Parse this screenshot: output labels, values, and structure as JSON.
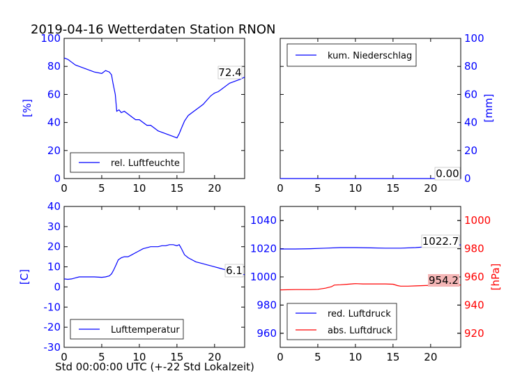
{
  "figure": {
    "title": "2019-04-16 Wetterdaten Station RNON"
  },
  "chart_data": [
    {
      "type": "line",
      "id": "humidity",
      "ylabel": "[%]",
      "xlim": [
        0,
        24
      ],
      "ylim": [
        0,
        100
      ],
      "xticks": [
        0,
        5,
        10,
        15,
        20
      ],
      "yticks": [
        0,
        20,
        40,
        60,
        80,
        100
      ],
      "legend": "lower-left",
      "colors": {
        "series": "#0000ff",
        "axis": "#0000ff"
      },
      "last_value_label": "72.4",
      "series": [
        {
          "name": "rel. Luftfeuchte",
          "x": [
            0,
            0.5,
            1,
            1.5,
            2,
            3,
            4,
            5,
            5.5,
            6,
            6.3,
            6.5,
            6.8,
            7,
            7.3,
            7.6,
            8,
            8.5,
            9,
            9.5,
            10,
            10.5,
            11,
            11.5,
            12,
            12.5,
            13,
            13.5,
            14,
            14.5,
            15,
            15.3,
            15.6,
            16,
            16.5,
            17,
            17.5,
            18,
            18.5,
            19,
            19.5,
            20,
            20.5,
            21,
            21.5,
            22,
            22.5,
            23,
            23.5,
            24
          ],
          "y": [
            86,
            85,
            83,
            81,
            80,
            78,
            76,
            75,
            77,
            76,
            74,
            68,
            60,
            48,
            49,
            47,
            48,
            46,
            44,
            42,
            42,
            40,
            38,
            38,
            36,
            34,
            33,
            32,
            31,
            30,
            29,
            32,
            36,
            41,
            45,
            47,
            49,
            51,
            53,
            56,
            59,
            61,
            62,
            64,
            66,
            68,
            69,
            70,
            71,
            72.4
          ]
        }
      ]
    },
    {
      "type": "line",
      "id": "precipitation",
      "ylabel": "[mm]",
      "xlim": [
        0,
        24
      ],
      "ylim": [
        0,
        100
      ],
      "xticks": [
        0,
        5,
        10,
        15,
        20
      ],
      "yticks": [
        0,
        20,
        40,
        60,
        80,
        100
      ],
      "legend": "upper-left",
      "colors": {
        "series": "#0000ff",
        "axis": "#0000ff"
      },
      "last_value_label": "0.00",
      "series": [
        {
          "name": "kum. Niederschlag",
          "x": [
            0,
            24
          ],
          "y": [
            0,
            0
          ]
        }
      ]
    },
    {
      "type": "line",
      "id": "temperature",
      "xlabel": "Std 00:00:00 UTC (+-22 Std Lokalzeit)",
      "ylabel": "[C]",
      "xlim": [
        0,
        24
      ],
      "ylim": [
        -30,
        40
      ],
      "xticks": [
        0,
        5,
        10,
        15,
        20
      ],
      "yticks": [
        -30,
        -20,
        -10,
        0,
        10,
        20,
        30,
        40
      ],
      "legend": "lower-left",
      "colors": {
        "series": "#0000ff",
        "axis": "#0000ff"
      },
      "last_value_label": "6.1",
      "series": [
        {
          "name": "Lufttemperatur",
          "x": [
            0,
            0.5,
            1,
            1.5,
            2,
            3,
            4,
            5,
            5.5,
            6,
            6.3,
            6.6,
            6.9,
            7.2,
            7.6,
            8,
            8.5,
            9,
            9.5,
            10,
            10.5,
            11,
            11.5,
            12,
            12.5,
            13,
            13.5,
            14,
            14.5,
            15,
            15.3,
            15.6,
            16,
            16.5,
            17,
            17.5,
            18,
            18.5,
            19,
            19.5,
            20,
            20.5,
            21,
            21.5,
            22,
            22.5,
            23,
            23.5,
            24
          ],
          "y": [
            4,
            3.8,
            4,
            4.5,
            5,
            5,
            5,
            4.8,
            5,
            5.5,
            6.5,
            8.5,
            11,
            13.5,
            14.5,
            15,
            15,
            16,
            17,
            18,
            19,
            19.5,
            20,
            20,
            20,
            20.5,
            20.5,
            21,
            21,
            20.5,
            21,
            19,
            16,
            14.5,
            13.5,
            12.5,
            12,
            11.5,
            11,
            10.5,
            10,
            9.5,
            9,
            8.5,
            8,
            7.5,
            7,
            6.5,
            6.1
          ]
        }
      ]
    },
    {
      "type": "line",
      "id": "pressure",
      "ylabel": "[hPa]",
      "xlim": [
        0,
        24
      ],
      "ylim": [
        950,
        1050
      ],
      "ylim_right": [
        910,
        1010
      ],
      "xticks": [
        0,
        5,
        10,
        15,
        20
      ],
      "yticks": [
        960,
        980,
        1000,
        1020,
        1040
      ],
      "yticks_right": [
        920,
        940,
        960,
        980,
        1000
      ],
      "legend": "lower-left",
      "colors": {
        "left_axis": "#0000ff",
        "right_axis": "#ff0000",
        "label_box_right": "#f4b6b6"
      },
      "last_value_labels": [
        "1022.7",
        "954.2"
      ],
      "series": [
        {
          "name": "red. Luftdruck",
          "axis": "left",
          "color": "#0000ff",
          "x": [
            0,
            2,
            4,
            6,
            8,
            10,
            12,
            14,
            16,
            18,
            20,
            22,
            24
          ],
          "y": [
            1019.8,
            1019.8,
            1020.0,
            1020.4,
            1020.8,
            1020.8,
            1020.6,
            1020.4,
            1020.4,
            1020.8,
            1021.6,
            1022.4,
            1022.7
          ]
        },
        {
          "name": "abs. Luftdruck",
          "axis": "right",
          "color": "#ff0000",
          "x": [
            0,
            2,
            4,
            5,
            6,
            6.8,
            7.2,
            8,
            9,
            10,
            11,
            12,
            13,
            14,
            15,
            15.6,
            16,
            17,
            18,
            19,
            20,
            21,
            22,
            23,
            24
          ],
          "y": [
            950.8,
            951.0,
            951.0,
            951.2,
            952.0,
            953.0,
            954.2,
            954.4,
            954.8,
            955.2,
            955.0,
            955.0,
            955.0,
            955.0,
            954.8,
            953.8,
            953.4,
            953.4,
            953.6,
            953.8,
            954.0,
            954.0,
            954.0,
            954.2,
            954.2
          ]
        }
      ]
    }
  ]
}
